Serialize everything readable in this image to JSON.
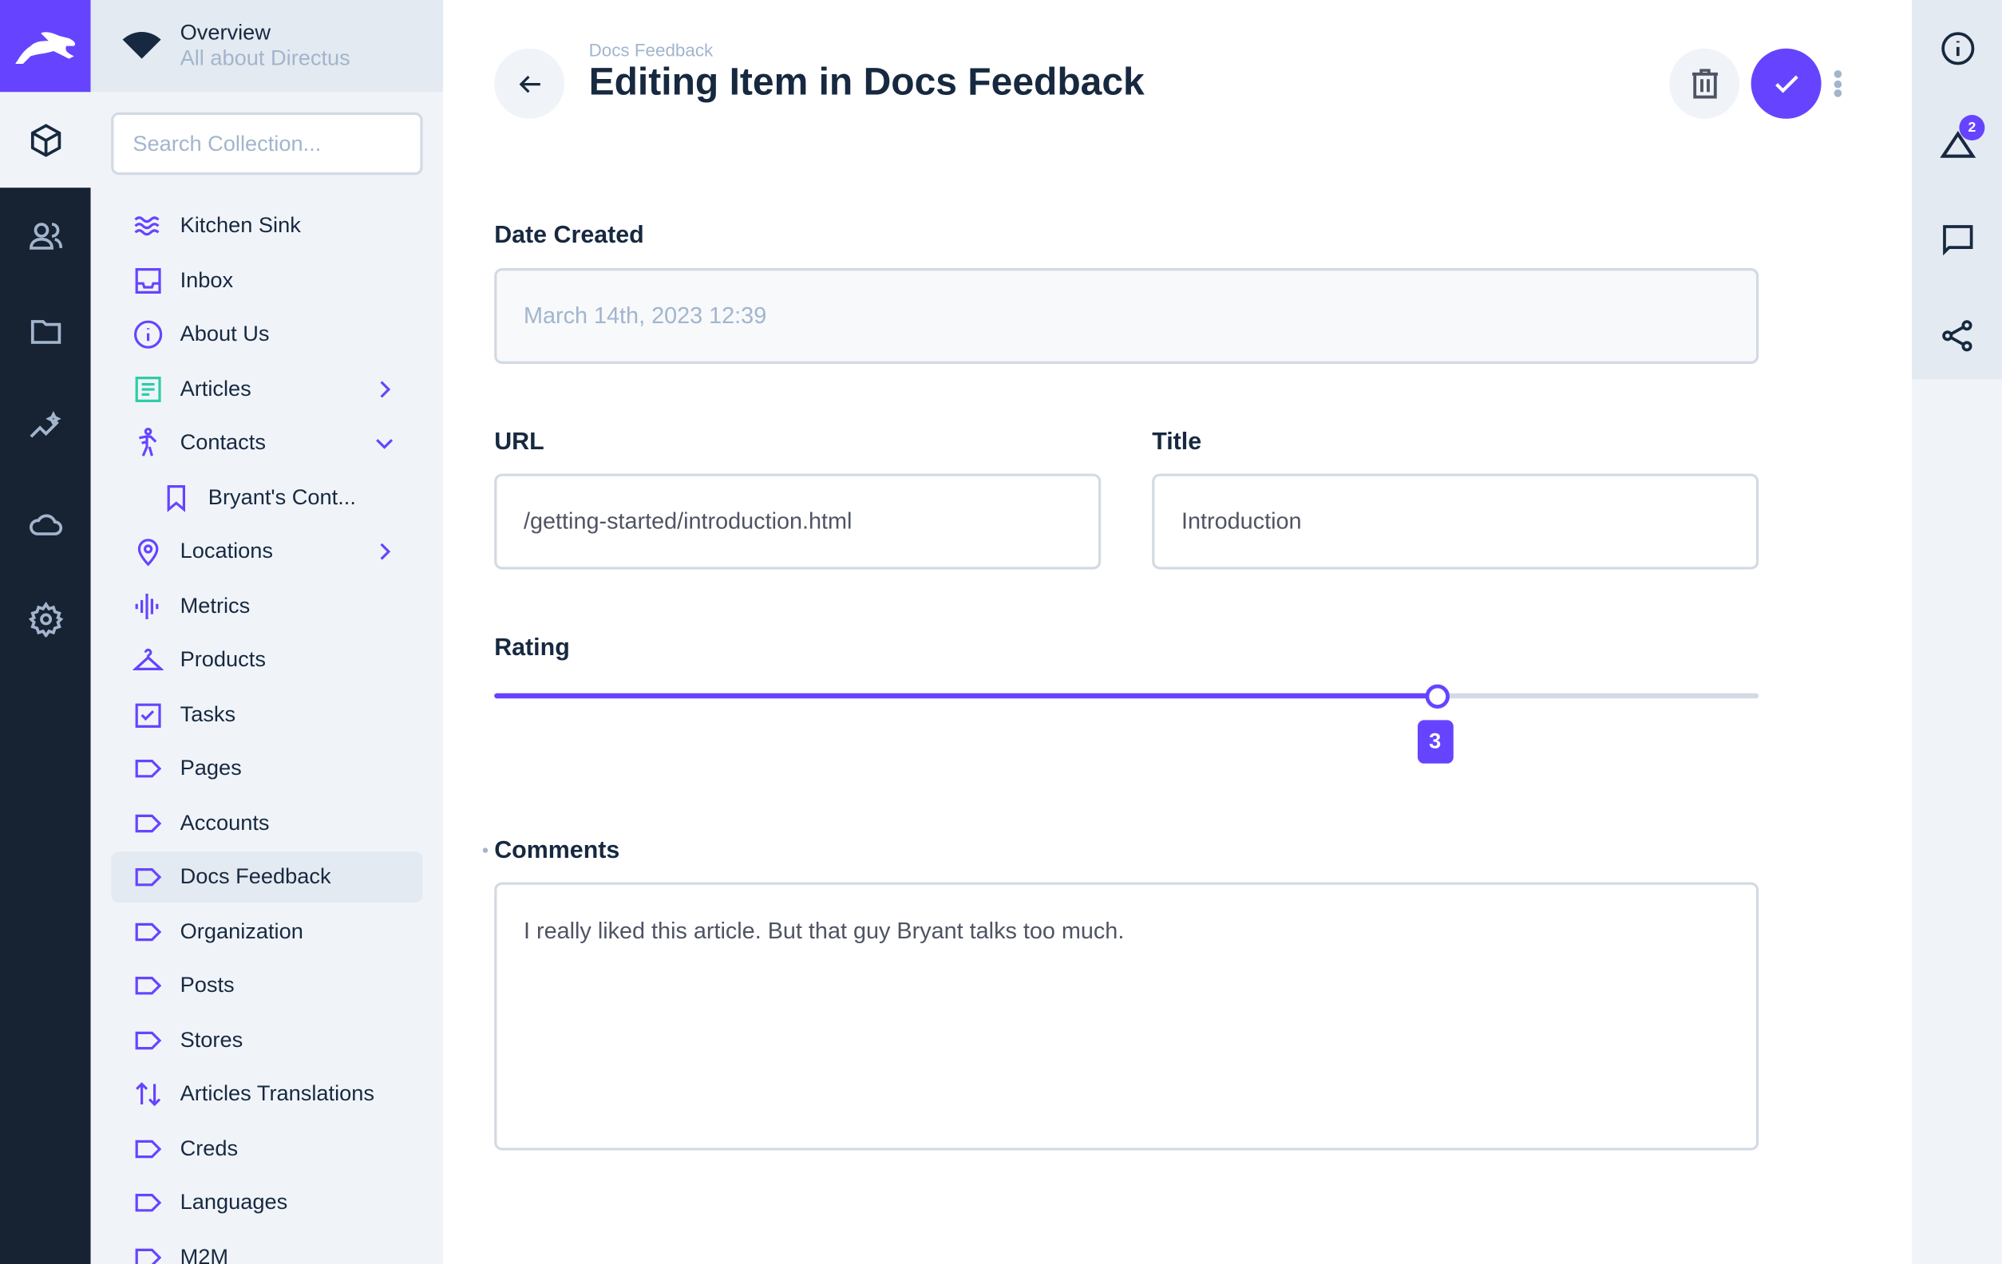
{
  "project": {
    "name": "Overview",
    "subtitle": "All about Directus"
  },
  "search": {
    "placeholder": "Search Collection..."
  },
  "collections": [
    {
      "label": "Kitchen Sink",
      "icon": "waves-icon"
    },
    {
      "label": "Inbox",
      "icon": "inbox-icon"
    },
    {
      "label": "About Us",
      "icon": "info-icon"
    },
    {
      "label": "Articles",
      "icon": "article-icon",
      "chevron": "right"
    },
    {
      "label": "Contacts",
      "icon": "person-icon",
      "chevron": "down"
    },
    {
      "label": "Bryant's Cont...",
      "icon": "bookmark-icon",
      "child": true
    },
    {
      "label": "Locations",
      "icon": "location-pin-icon",
      "chevron": "right"
    },
    {
      "label": "Metrics",
      "icon": "graphic-eq-icon"
    },
    {
      "label": "Products",
      "icon": "hanger-icon"
    },
    {
      "label": "Tasks",
      "icon": "checkbox-icon"
    },
    {
      "label": "Pages",
      "icon": "label-icon"
    },
    {
      "label": "Accounts",
      "icon": "label-icon"
    },
    {
      "label": "Docs Feedback",
      "icon": "label-icon",
      "active": true
    },
    {
      "label": "Organization",
      "icon": "label-icon"
    },
    {
      "label": "Posts",
      "icon": "label-icon"
    },
    {
      "label": "Stores",
      "icon": "label-icon"
    },
    {
      "label": "Articles Translations",
      "icon": "swap-icon"
    },
    {
      "label": "Creds",
      "icon": "label-icon"
    },
    {
      "label": "Languages",
      "icon": "label-icon"
    },
    {
      "label": "M2M",
      "icon": "label-icon"
    }
  ],
  "header": {
    "breadcrumb": "Docs Feedback",
    "title": "Editing Item in Docs Feedback"
  },
  "form": {
    "date_created": {
      "label": "Date Created",
      "value": "March 14th, 2023 12:39"
    },
    "url": {
      "label": "URL",
      "value": "/getting-started/introduction.html"
    },
    "title": {
      "label": "Title",
      "value": "Introduction"
    },
    "rating": {
      "label": "Rating",
      "value": "3",
      "fraction": 0.745
    },
    "comments": {
      "label": "Comments",
      "value": "I really liked this article. But that guy Bryant talks too much."
    }
  },
  "sidebar": {
    "revisions_badge": "2"
  },
  "colors": {
    "accent": "#6644ff",
    "rail": "#172233",
    "nav_bg": "#f0f4f9"
  }
}
